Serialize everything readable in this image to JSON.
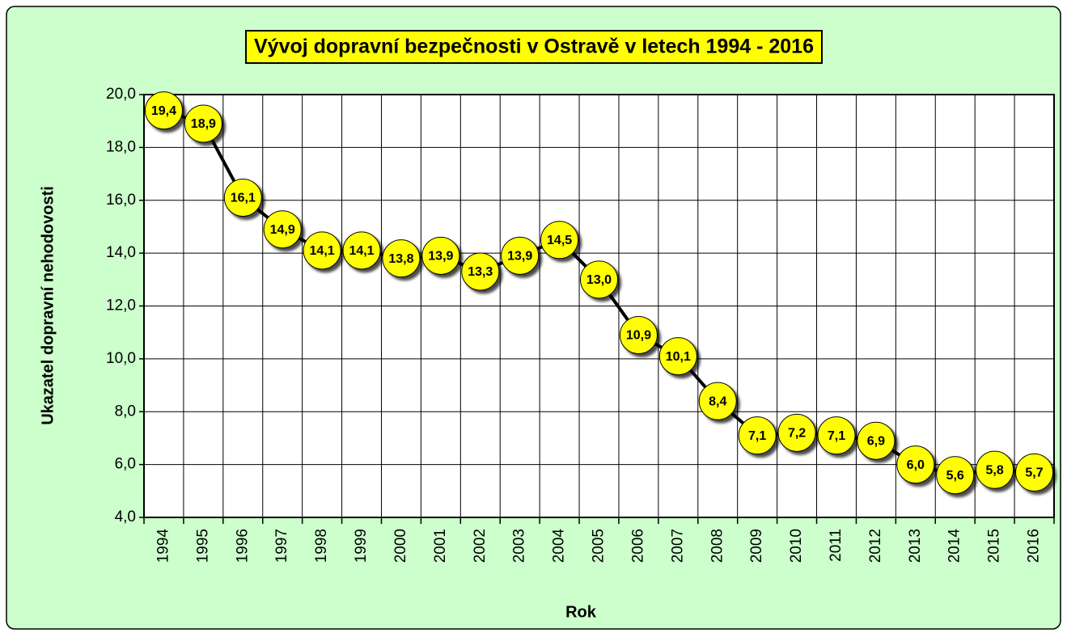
{
  "chart_data": {
    "type": "line",
    "title": "Vývoj dopravní bezpečnosti v Ostravě v letech 1994 - 2016",
    "x_label": "Rok",
    "y_label": "Ukazatel dopravní nehodovosti",
    "categories": [
      "1994",
      "1995",
      "1996",
      "1997",
      "1998",
      "1999",
      "2000",
      "2001",
      "2002",
      "2003",
      "2004",
      "2005",
      "2006",
      "2007",
      "2008",
      "2009",
      "2010",
      "2011",
      "2012",
      "2013",
      "2014",
      "2015",
      "2016"
    ],
    "values": [
      19.4,
      18.9,
      16.1,
      14.9,
      14.1,
      14.1,
      13.8,
      13.9,
      13.3,
      13.9,
      14.5,
      13.0,
      10.9,
      10.1,
      8.4,
      7.1,
      7.2,
      7.1,
      6.9,
      6.0,
      5.6,
      5.8,
      5.7
    ],
    "value_labels": [
      "19,4",
      "18,9",
      "16,1",
      "14,9",
      "14,1",
      "14,1",
      "13,8",
      "13,9",
      "13,3",
      "13,9",
      "14,5",
      "13,0",
      "10,9",
      "10,1",
      "8,4",
      "7,1",
      "7,2",
      "7,1",
      "6,9",
      "6,0",
      "5,6",
      "5,8",
      "5,7"
    ],
    "ylim": [
      4,
      20
    ],
    "yticks": [
      {
        "value": 4,
        "label": "4,0"
      },
      {
        "value": 6,
        "label": "6,0"
      },
      {
        "value": 8,
        "label": "8,0"
      },
      {
        "value": 10,
        "label": "10,0"
      },
      {
        "value": 12,
        "label": "12,0"
      },
      {
        "value": 14,
        "label": "14,0"
      },
      {
        "value": 16,
        "label": "16,0"
      },
      {
        "value": 18,
        "label": "18,0"
      },
      {
        "value": 20,
        "label": "20,0"
      }
    ],
    "grid": true,
    "color": "#000000",
    "marker_color": "#ffff00"
  }
}
